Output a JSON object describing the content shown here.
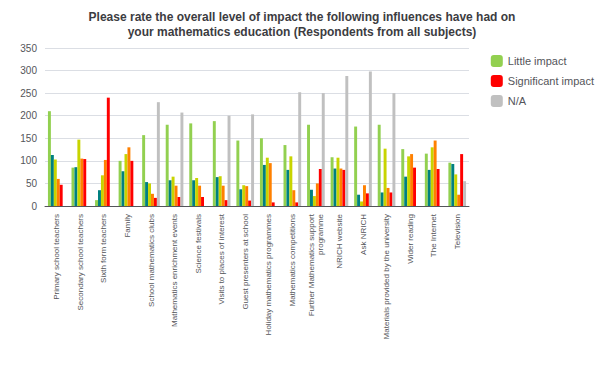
{
  "chart_data": {
    "type": "bar",
    "title": "Please rate the overall level of impact the following influences have had on\nyour mathematics education (Respondents from all subjects)",
    "categories": [
      "Primary school teachers",
      "Secondary school teachers",
      "Sixth form teachers",
      "Family",
      "School mathematics clubs",
      "Mathematics enrichment events",
      "Science festivals",
      "Visits to places of interest",
      "Guest presenters at school",
      "Holiday mathematics programmes",
      "Mathematics competitions",
      "Further Mathematics support\nprogramme",
      "NRICH website",
      "Ask NRICH",
      "Materials provided by the university",
      "Wider reading",
      "The Internet",
      "Television"
    ],
    "series": [
      {
        "name": "Little impact",
        "color": "#92d050",
        "values": [
          210,
          85,
          13,
          100,
          157,
          180,
          183,
          188,
          145,
          150,
          135,
          180,
          108,
          176,
          180,
          126,
          116,
          96
        ]
      },
      {
        "color": "#008080",
        "values": [
          113,
          86,
          35,
          77,
          53,
          57,
          57,
          64,
          37,
          91,
          80,
          36,
          83,
          25,
          30,
          65,
          80,
          93
        ]
      },
      {
        "color": "#c8d400",
        "values": [
          103,
          147,
          68,
          115,
          50,
          65,
          62,
          66,
          46,
          107,
          110,
          22,
          107,
          10,
          127,
          110,
          130,
          70
        ]
      },
      {
        "color": "#ff8000",
        "values": [
          60,
          105,
          102,
          130,
          27,
          45,
          45,
          45,
          44,
          95,
          35,
          50,
          83,
          46,
          40,
          115,
          145,
          25
        ]
      },
      {
        "name": "Significant impact",
        "color": "#ff0000",
        "values": [
          47,
          104,
          240,
          100,
          18,
          20,
          20,
          13,
          12,
          8,
          8,
          82,
          80,
          28,
          30,
          85,
          82,
          115
        ]
      },
      {
        "name": "N/A",
        "color": "#c0c0c0",
        "values": [
          0,
          0,
          0,
          0,
          230,
          207,
          0,
          200,
          203,
          0,
          252,
          250,
          288,
          298,
          250,
          0,
          0,
          55
        ]
      }
    ],
    "ylim": [
      0,
      350
    ],
    "yticks": [
      0,
      50,
      100,
      150,
      200,
      250,
      300,
      350
    ],
    "grid": true,
    "legend": "right"
  }
}
